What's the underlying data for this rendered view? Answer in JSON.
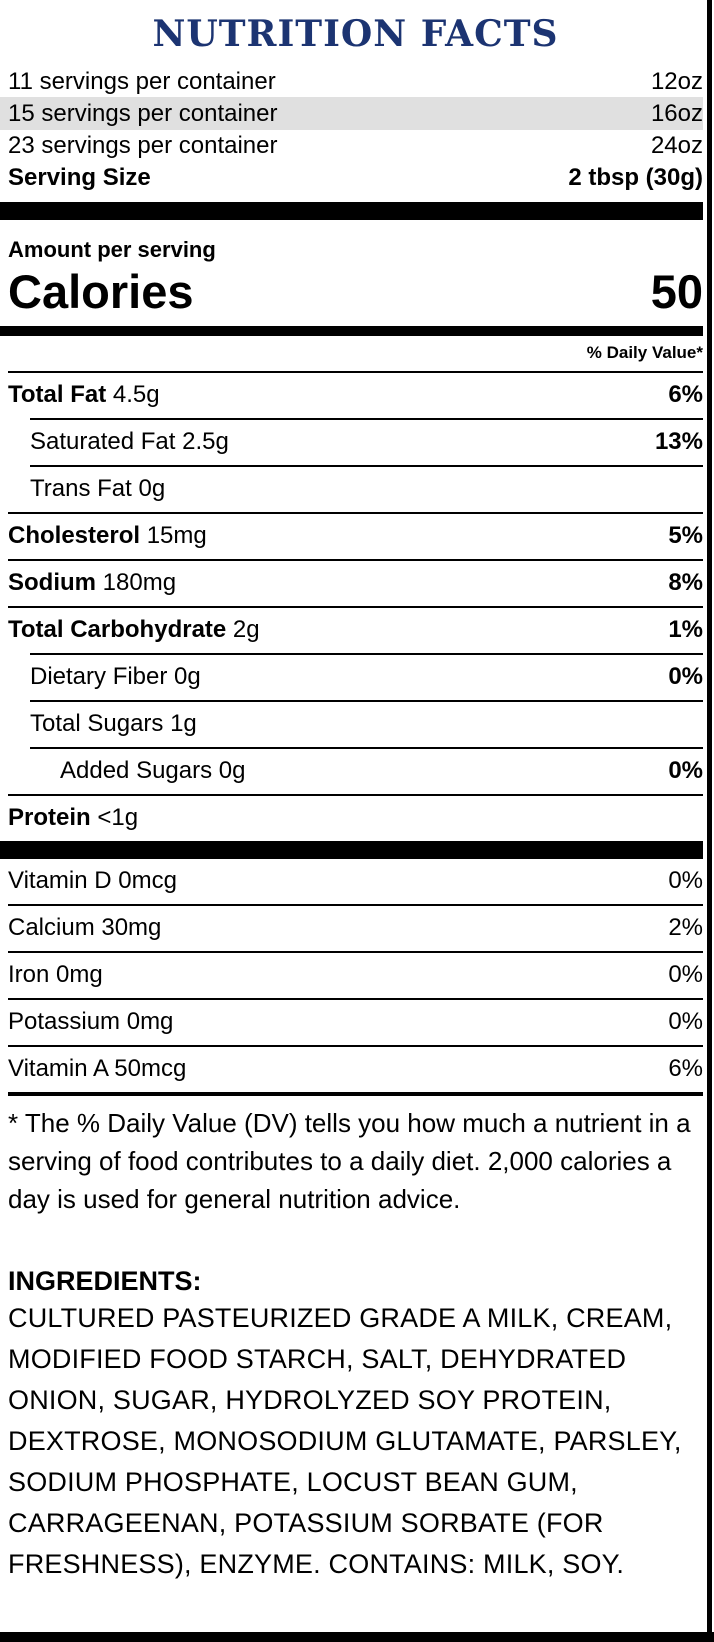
{
  "colors": {
    "title_blue": "#1c3472",
    "highlight_gray": "#e0e0e0",
    "bar_black": "#000000"
  },
  "label": {
    "title": "NUTRITION FACTS",
    "serving_options": [
      {
        "servings": "11 servings per container",
        "size": "12oz",
        "selected": false
      },
      {
        "servings": "15 servings per container",
        "size": "16oz",
        "selected": true
      },
      {
        "servings": "23 servings per container",
        "size": "24oz",
        "selected": false
      }
    ],
    "serving_size_label": "Serving Size",
    "serving_size_value": "2 tbsp (30g)",
    "amount_per_serving": "Amount per serving",
    "calories_label": "Calories",
    "calories_value": "50",
    "daily_value_header": "% Daily Value*",
    "nutrients": [
      {
        "name": "Total Fat",
        "amount": "4.5g",
        "pct": "6%"
      },
      {
        "name": "Saturated Fat",
        "amount": "2.5g",
        "pct": "13%"
      },
      {
        "name": "Trans Fat",
        "amount": "0g",
        "pct": ""
      },
      {
        "name": "Cholesterol",
        "amount": "15mg",
        "pct": "5%"
      },
      {
        "name": "Sodium",
        "amount": "180mg",
        "pct": "8%"
      },
      {
        "name": "Total Carbohydrate",
        "amount": "2g",
        "pct": "1%"
      },
      {
        "name": "Dietary Fiber",
        "amount": "0g",
        "pct": "0%"
      },
      {
        "name": "Total Sugars",
        "amount": "1g",
        "pct": ""
      },
      {
        "name": "Added Sugars",
        "amount": "0g",
        "pct": "0%"
      },
      {
        "name": "Protein",
        "amount": "<1g",
        "pct": ""
      }
    ],
    "vitamins": [
      {
        "name": "Vitamin D",
        "amount": "0mcg",
        "pct": "0%"
      },
      {
        "name": "Calcium",
        "amount": "30mg",
        "pct": "2%"
      },
      {
        "name": "Iron",
        "amount": "0mg",
        "pct": "0%"
      },
      {
        "name": "Potassium",
        "amount": "0mg",
        "pct": "0%"
      },
      {
        "name": "Vitamin A",
        "amount": "50mcg",
        "pct": "6%"
      }
    ],
    "footnote": "* The % Daily Value (DV) tells you how much a nutrient in a serving of food contributes to a daily diet. 2,000 calories a day is used for general nutrition advice.",
    "ingredients_label": "INGREDIENTS:",
    "ingredients_text": "CULTURED PASTEURIZED GRADE A MILK, CREAM, MODIFIED FOOD STARCH, SALT, DEHYDRATED ONION, SUGAR, HYDROLYZED SOY PROTEIN, DEXTROSE, MONOSODIUM GLUTAMATE, PARSLEY, SODIUM PHOSPHATE, LOCUST BEAN GUM, CARRAGEENAN, POTASSIUM SORBATE (FOR FRESHNESS), ENZYME. CONTAINS: MILK, SOY."
  }
}
